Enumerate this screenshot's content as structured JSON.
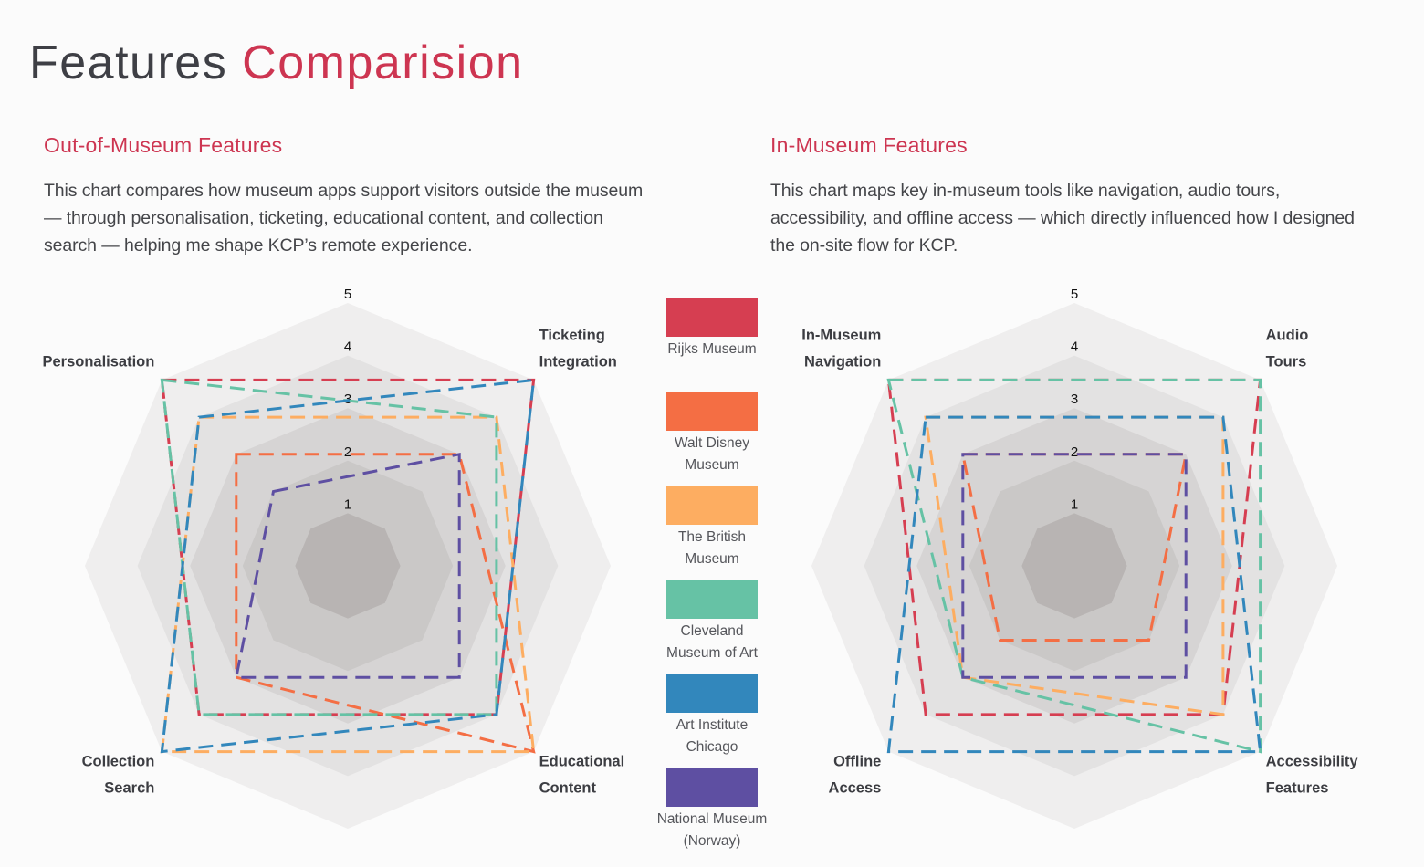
{
  "page": {
    "title_main": "Features",
    "title_accent": "Comparision",
    "accent_color": "#cd3551"
  },
  "sections": [
    {
      "heading": "Out-of-Museum Features",
      "description": "This chart compares how museum apps support visitors outside the museum — through personalisation, ticketing, educational content, and collection search — helping me shape KCP’s remote experience."
    },
    {
      "heading": "In-Museum Features",
      "description": "This chart maps key in-museum tools like navigation, audio tours, accessibility, and offline access — which directly influenced how I designed the on-site flow for KCP."
    }
  ],
  "legend": [
    {
      "name": "Rijks Museum",
      "color": "#d63e51"
    },
    {
      "name": "Walt Disney Museum",
      "color": "#f46e44"
    },
    {
      "name": "The British Museum",
      "color": "#fdad61"
    },
    {
      "name": "Cleveland Museum of Art",
      "color": "#66c2a5"
    },
    {
      "name": "Art Institute Chicago",
      "color": "#3287bc"
    },
    {
      "name": "National Museum (Norway)",
      "color": "#5e4fa2"
    }
  ],
  "chart_data": [
    {
      "type": "radar",
      "title": "Out-of-Museum Features",
      "axes": [
        "Personalisation",
        "Ticketing Integration",
        "Educational Content",
        "Collection Search"
      ],
      "axis_label_lines": [
        [
          "Personalisation"
        ],
        [
          "Ticketing",
          "Integration"
        ],
        [
          "Educational",
          "Content"
        ],
        [
          "Collection",
          "Search"
        ]
      ],
      "scale": {
        "min": 0,
        "max": 5,
        "ticks": [
          "1",
          "2",
          "3",
          "4",
          "5"
        ]
      },
      "series": [
        {
          "name": "Rijks Museum",
          "values": [
            5,
            5,
            4,
            4
          ]
        },
        {
          "name": "Walt Disney Museum",
          "values": [
            3,
            3,
            5,
            3
          ]
        },
        {
          "name": "The British Museum",
          "values": [
            4,
            4,
            5,
            5
          ]
        },
        {
          "name": "Cleveland Museum of Art",
          "values": [
            5,
            4,
            4,
            4
          ]
        },
        {
          "name": "Art Institute Chicago",
          "values": [
            4,
            5,
            4,
            5
          ]
        },
        {
          "name": "National Museum (Norway)",
          "values": [
            2,
            3,
            3,
            3
          ]
        }
      ],
      "legend_position": "right"
    },
    {
      "type": "radar",
      "title": "In-Museum Features",
      "axes": [
        "In-Museum Navigation",
        "Audio Tours",
        "Accessibility Features",
        "Offline Access"
      ],
      "axis_label_lines": [
        [
          "In-Museum",
          "Navigation"
        ],
        [
          "Audio",
          "Tours"
        ],
        [
          "Accessibility",
          "Features"
        ],
        [
          "Offline",
          "Access"
        ]
      ],
      "scale": {
        "min": 0,
        "max": 5,
        "ticks": [
          "1",
          "2",
          "3",
          "4",
          "5"
        ]
      },
      "series": [
        {
          "name": "Rijks Museum",
          "values": [
            5,
            5,
            4,
            4
          ]
        },
        {
          "name": "Walt Disney Museum",
          "values": [
            3,
            3,
            2,
            2
          ]
        },
        {
          "name": "The British Museum",
          "values": [
            4,
            4,
            4,
            3
          ]
        },
        {
          "name": "Cleveland Museum of Art",
          "values": [
            5,
            5,
            5,
            3
          ]
        },
        {
          "name": "Art Institute Chicago",
          "values": [
            4,
            4,
            5,
            5
          ]
        },
        {
          "name": "National Museum (Norway)",
          "values": [
            3,
            3,
            3,
            3
          ]
        }
      ],
      "legend_position": "left"
    }
  ]
}
